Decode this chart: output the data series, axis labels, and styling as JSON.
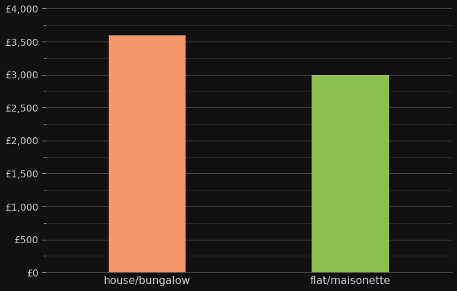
{
  "categories": [
    "house/bungalow",
    "flat/maisonette"
  ],
  "values": [
    3600,
    3000
  ],
  "bar_colors": [
    "#F4956A",
    "#8DC050"
  ],
  "background_color": "#111111",
  "text_color": "#cccccc",
  "grid_color_major": "#555555",
  "grid_color_minor": "#333333",
  "ylim": [
    0,
    4000
  ],
  "yticks_major": [
    0,
    500,
    1000,
    1500,
    2000,
    2500,
    3000,
    3500,
    4000
  ],
  "bar_width": 0.38,
  "x_positions": [
    1,
    2
  ],
  "xlim": [
    0.5,
    2.5
  ],
  "xlabel": "",
  "ylabel": "",
  "tick_label_fontsize": 10,
  "xlabel_fontsize": 11
}
